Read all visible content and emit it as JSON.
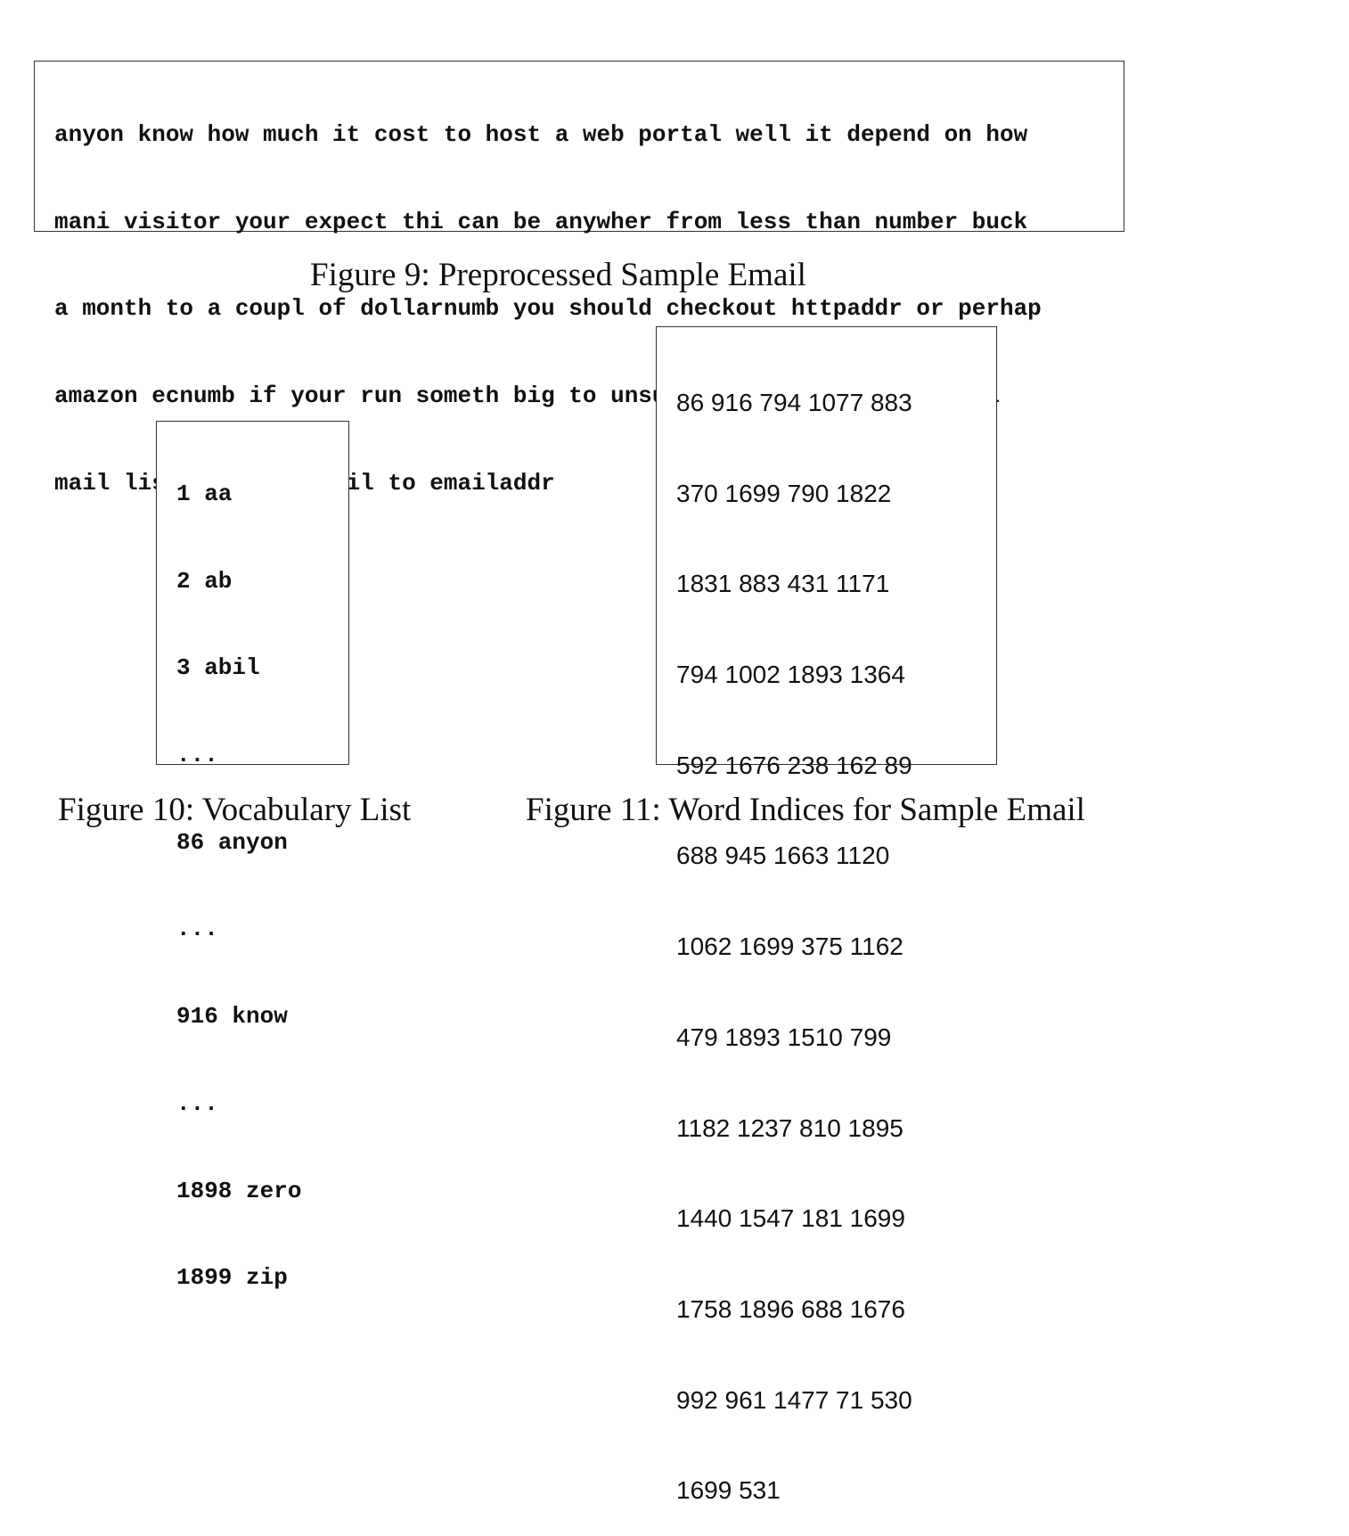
{
  "figure9": {
    "lines": [
      "anyon know how much it cost to host a web portal well it depend on how",
      "mani visitor your expect thi can be anywher from less than number buck",
      "a month to a coupl of dollarnumb you should checkout httpaddr or perhap",
      "amazon ecnumb if your run someth big to unsubscrib yourself from thi",
      "mail list send an email to emailaddr"
    ],
    "caption": "Figure 9:  Preprocessed Sample Email"
  },
  "figure10": {
    "lines": [
      "1 aa",
      "2 ab",
      "3 abil",
      "...",
      "86 anyon",
      "...",
      "916 know",
      "...",
      "1898 zero",
      "1899 zip"
    ],
    "caption": "Figure 10:  Vocabulary List"
  },
  "figure11": {
    "lines": [
      "86 916 794 1077 883",
      "370 1699 790 1822",
      "1831 883 431 1171",
      "794 1002 1893 1364",
      "592 1676 238 162 89",
      "688 945 1663 1120",
      "1062 1699 375 1162",
      "479 1893 1510 799",
      "1182 1237 810 1895",
      "1440 1547 181 1699",
      "1758 1896 688 1676",
      "992 961 1477 71 530",
      "1699 531"
    ],
    "caption": "Figure 11:  Word Indices for Sample Email"
  }
}
